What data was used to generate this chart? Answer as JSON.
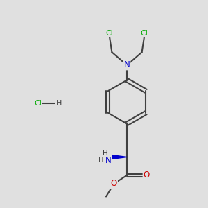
{
  "background_color": "#e0e0e0",
  "atom_colors": {
    "C": "#404040",
    "N": "#0000cc",
    "O": "#cc0000",
    "Cl": "#00aa00",
    "H": "#404040"
  },
  "bond_color": "#404040",
  "bond_width": 1.5,
  "figsize": [
    3.0,
    3.0
  ],
  "dpi": 100
}
